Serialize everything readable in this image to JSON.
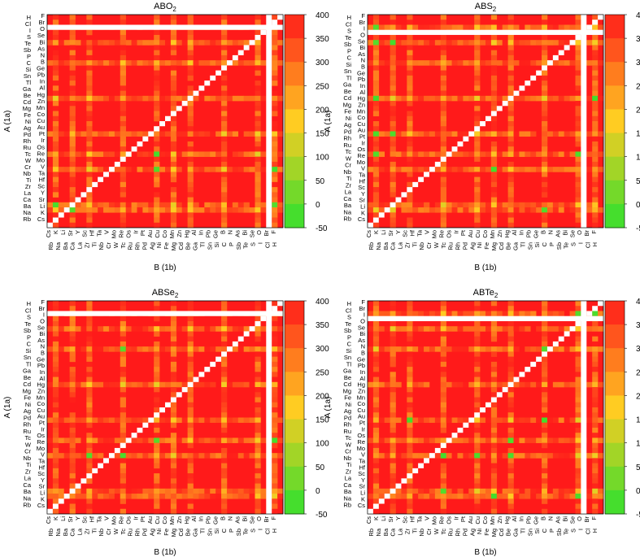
{
  "figure": {
    "description_free": true
  },
  "chart_data": [
    {
      "type": "heatmap",
      "title": "ABO",
      "title_sub": "2",
      "xlabel": "B (1b)",
      "ylabel": "A (1a)",
      "colorbar": {
        "min": -50,
        "max": 400,
        "ticks": [
          "400",
          "350",
          "300",
          "250",
          "200",
          "150",
          "100",
          "50",
          "0",
          "-50"
        ],
        "colors": [
          "#2ee02e",
          "#ffcc22",
          "#ff1a1a"
        ]
      },
      "x_tick_labels_lower": [
        "Rb",
        "Na",
        "Ba",
        "Ca",
        "La",
        "Zr",
        "Ti",
        "Nb",
        "Cr",
        "W",
        "Tc",
        "Ru",
        "Rh",
        "Pd",
        "Ag",
        "Ni",
        "Fe",
        "Mg",
        "Cd",
        "Be",
        "Ga",
        "Tl",
        "Sn",
        "Si",
        "C",
        "P",
        "Sb",
        "Te",
        "S",
        "I",
        "Cl",
        "H"
      ],
      "x_tick_labels_upper": [
        "Cs",
        "K",
        "Li",
        "Sr",
        "Y",
        "Sc",
        "Hf",
        "Ta",
        "V",
        "Mo",
        "Re",
        "Os",
        "Ir",
        "Pt",
        "Au",
        "Cu",
        "Co",
        "Mn",
        "Zn",
        "Hg",
        "Al",
        "In",
        "Pb",
        "Ge",
        "B",
        "N",
        "As",
        "Bi",
        "Se",
        "O",
        "Br",
        "F"
      ],
      "y_tick_labels_left": [
        "H",
        "Cl",
        "I",
        "S",
        "Te",
        "Sb",
        "P",
        "C",
        "Si",
        "Sn",
        "Tl",
        "Ga",
        "Be",
        "Cd",
        "Mg",
        "Fe",
        "Ni",
        "Ag",
        "Pd",
        "Rh",
        "Ru",
        "Tc",
        "W",
        "Cr",
        "Nb",
        "Ti",
        "Zr",
        "La",
        "Ca",
        "Ba",
        "Na",
        "Rb"
      ],
      "y_tick_labels_right": [
        "F",
        "Br",
        "O",
        "Se",
        "Bi",
        "As",
        "N",
        "B",
        "Ge",
        "Pb",
        "In",
        "Al",
        "Hg",
        "Zn",
        "Mn",
        "Co",
        "Cu",
        "Au",
        "Pt",
        "Ir",
        "Os",
        "Re",
        "Mo",
        "V",
        "Ta",
        "Hf",
        "Sc",
        "Y",
        "Sr",
        "Li",
        "K",
        "Cs"
      ],
      "gap_rows": [
        "O"
      ],
      "gap_cols": [
        "O"
      ],
      "low_value_rows": [
        "Cu",
        "Au",
        "Ag",
        "Hg",
        "Cd"
      ],
      "low_value_cols": [
        "La",
        "Cr",
        "Mo",
        "Ag",
        "Au",
        "Cu",
        "Co",
        "Ga",
        "In",
        "Tl",
        "Pb"
      ]
    },
    {
      "type": "heatmap",
      "title": "ABS",
      "title_sub": "2",
      "xlabel": "B (1b)",
      "ylabel": "A (1a)",
      "colorbar": {
        "min": -50,
        "max": 400,
        "ticks": [
          "400",
          "350",
          "300",
          "250",
          "200",
          "150",
          "100",
          "50",
          "0",
          "-50"
        ],
        "colors": [
          "#2ee02e",
          "#ffcc22",
          "#ff1a1a"
        ]
      },
      "x_tick_labels_lower": [
        "Rb",
        "Na",
        "Ba",
        "Ca",
        "La",
        "Zr",
        "Ti",
        "Nb",
        "Cr",
        "W",
        "Tc",
        "Ru",
        "Rh",
        "Pd",
        "Ag",
        "Ni",
        "Fe",
        "Mg",
        "Cd",
        "Be",
        "Ga",
        "Tl",
        "Sn",
        "Si",
        "C",
        "P",
        "Sb",
        "Te",
        "S",
        "I",
        "Cl",
        "H"
      ],
      "x_tick_labels_upper": [
        "Cs",
        "K",
        "Li",
        "Sr",
        "Y",
        "Sc",
        "Hf",
        "Ta",
        "V",
        "Mo",
        "Re",
        "Os",
        "Ir",
        "Pt",
        "Au",
        "Cu",
        "Co",
        "Mn",
        "Zn",
        "Hg",
        "Al",
        "In",
        "Pb",
        "Ge",
        "B",
        "N",
        "As",
        "Bi",
        "Se",
        "O",
        "Br",
        "F"
      ],
      "y_tick_labels_left": [
        "H",
        "Cl",
        "S",
        "Te",
        "Sb",
        "P",
        "C",
        "Si",
        "Sn",
        "Tl",
        "Ga",
        "Be",
        "Cd",
        "Mg",
        "Fe",
        "Ni",
        "Ag",
        "Pd",
        "Rh",
        "Ru",
        "Tc",
        "W",
        "Cr",
        "Nb",
        "Ti",
        "Zr",
        "La",
        "Ca",
        "Ba",
        "Na",
        "Rb"
      ],
      "y_tick_labels_right": [
        "F",
        "Br",
        "I",
        "O",
        "Se",
        "Bi",
        "As",
        "N",
        "B",
        "Ge",
        "Pb",
        "In",
        "Al",
        "Hg",
        "Zn",
        "Mn",
        "Co",
        "Cu",
        "Au",
        "Pt",
        "Ir",
        "Os",
        "Re",
        "Mo",
        "V",
        "Ta",
        "Hf",
        "Sc",
        "Y",
        "Sr",
        "Li",
        "K",
        "Cs"
      ],
      "gap_rows": [
        "I"
      ],
      "gap_cols": [
        "I"
      ],
      "low_value_rows": [
        "Cu",
        "Au",
        "Tl",
        "Hg"
      ],
      "low_value_cols": [
        "Ti",
        "Hf",
        "Nb",
        "Pd",
        "Cu",
        "Ga",
        "Sn",
        "Sb"
      ]
    },
    {
      "type": "heatmap",
      "title": "ABSe",
      "title_sub": "2",
      "xlabel": "B (1b)",
      "ylabel": "A (1a)",
      "colorbar": {
        "min": -50,
        "max": 400,
        "ticks": [
          "400",
          "350",
          "300",
          "250",
          "200",
          "150",
          "100",
          "50",
          "0",
          "-50"
        ],
        "colors": [
          "#2ee02e",
          "#ffcc22",
          "#ff1a1a"
        ]
      },
      "x_tick_labels_lower": [
        "Rb",
        "Na",
        "Ba",
        "Ca",
        "La",
        "Zr",
        "Ti",
        "Nb",
        "Cr",
        "W",
        "Tc",
        "Ru",
        "Rh",
        "Pd",
        "Ag",
        "Ni",
        "Fe",
        "Mg",
        "Cd",
        "Be",
        "Ga",
        "Tl",
        "Sn",
        "Si",
        "C",
        "P",
        "Sb",
        "Te",
        "S",
        "I",
        "Cl",
        "H"
      ],
      "x_tick_labels_upper": [
        "Cs",
        "K",
        "Li",
        "Sr",
        "Y",
        "Sc",
        "Hf",
        "Ta",
        "V",
        "Mo",
        "Re",
        "Os",
        "Ir",
        "Pt",
        "Au",
        "Cu",
        "Co",
        "Mn",
        "Zn",
        "Hg",
        "Al",
        "In",
        "Pb",
        "Ge",
        "B",
        "N",
        "As",
        "Bi",
        "Se",
        "O",
        "Br",
        "F"
      ],
      "y_tick_labels_left": [
        "H",
        "Cl",
        "S",
        "Te",
        "Sb",
        "P",
        "C",
        "Si",
        "Sn",
        "Tl",
        "Ga",
        "Be",
        "Cd",
        "Mg",
        "Fe",
        "Ni",
        "Ag",
        "Pd",
        "Rh",
        "Ru",
        "Tc",
        "W",
        "Cr",
        "Nb",
        "Ti",
        "Zr",
        "La",
        "Ca",
        "Ba",
        "Na",
        "Rb"
      ],
      "y_tick_labels_right": [
        "F",
        "Br",
        "I",
        "O",
        "Se",
        "Bi",
        "As",
        "N",
        "B",
        "Ge",
        "Pb",
        "In",
        "Al",
        "Hg",
        "Zn",
        "Mn",
        "Co",
        "Cu",
        "Au",
        "Pt",
        "Ir",
        "Os",
        "Re",
        "Mo",
        "V",
        "Ta",
        "Hf",
        "Sc",
        "Y",
        "Sr",
        "Li",
        "K",
        "Cs"
      ],
      "gap_rows": [
        "Se"
      ],
      "gap_cols": [
        "Se"
      ],
      "low_value_rows": [
        "Cu",
        "Au",
        "Tl",
        "Hg",
        "Cs"
      ],
      "low_value_cols": [
        "Ti",
        "Hf",
        "V",
        "Ir",
        "Pt",
        "Cu",
        "Fe",
        "Ga",
        "Sn",
        "Bi"
      ]
    },
    {
      "type": "heatmap",
      "title": "ABTe",
      "title_sub": "2",
      "xlabel": "B (1b)",
      "ylabel": "A (1a)",
      "colorbar": {
        "min": -50,
        "max": 400,
        "ticks": [
          "400",
          "350",
          "300",
          "250",
          "200",
          "150",
          "100",
          "50",
          "0",
          "-50"
        ],
        "colors": [
          "#2ee02e",
          "#ffcc22",
          "#ff1a1a"
        ]
      },
      "x_tick_labels_lower": [
        "Rb",
        "Na",
        "Ba",
        "Ca",
        "La",
        "Zr",
        "Ti",
        "Nb",
        "Cr",
        "W",
        "Tc",
        "Ru",
        "Rh",
        "Pd",
        "Ag",
        "Ni",
        "Fe",
        "Mg",
        "Cd",
        "Be",
        "Ga",
        "Tl",
        "Sn",
        "Si",
        "C",
        "P",
        "Sb",
        "Te",
        "S",
        "I",
        "Cl",
        "H"
      ],
      "x_tick_labels_upper": [
        "Cs",
        "K",
        "Li",
        "Sr",
        "Y",
        "Sc",
        "Hf",
        "Ta",
        "V",
        "Mo",
        "Re",
        "Os",
        "Ir",
        "Pt",
        "Au",
        "Cu",
        "Co",
        "Mn",
        "Zn",
        "Hg",
        "Al",
        "In",
        "Pb",
        "Ge",
        "B",
        "N",
        "As",
        "Bi",
        "Se",
        "O",
        "Br",
        "F"
      ],
      "y_tick_labels_left": [
        "H",
        "Cl",
        "S",
        "Te",
        "Sb",
        "P",
        "C",
        "Si",
        "Sn",
        "Tl",
        "Ga",
        "Be",
        "Cd",
        "Mg",
        "Fe",
        "Ni",
        "Ag",
        "Pd",
        "Rh",
        "Ru",
        "Tc",
        "W",
        "Cr",
        "Nb",
        "Ti",
        "Zr",
        "La",
        "Ca",
        "Ba",
        "Na",
        "Rb"
      ],
      "y_tick_labels_right": [
        "F",
        "Br",
        "I",
        "O",
        "Se",
        "Bi",
        "As",
        "N",
        "B",
        "Ge",
        "Pb",
        "In",
        "Al",
        "Hg",
        "Zn",
        "Mn",
        "Co",
        "Cu",
        "Au",
        "Pt",
        "Ir",
        "Os",
        "Re",
        "Mo",
        "V",
        "Ta",
        "Hf",
        "Sc",
        "Y",
        "Sr",
        "Li",
        "K",
        "Cs"
      ],
      "gap_rows": [
        "Te"
      ],
      "gap_cols": [
        "Te"
      ],
      "low_value_rows": [
        "F",
        "Tl",
        "Au"
      ],
      "low_value_cols": [
        "Ir",
        "Pt",
        "Au",
        "Co"
      ]
    }
  ]
}
